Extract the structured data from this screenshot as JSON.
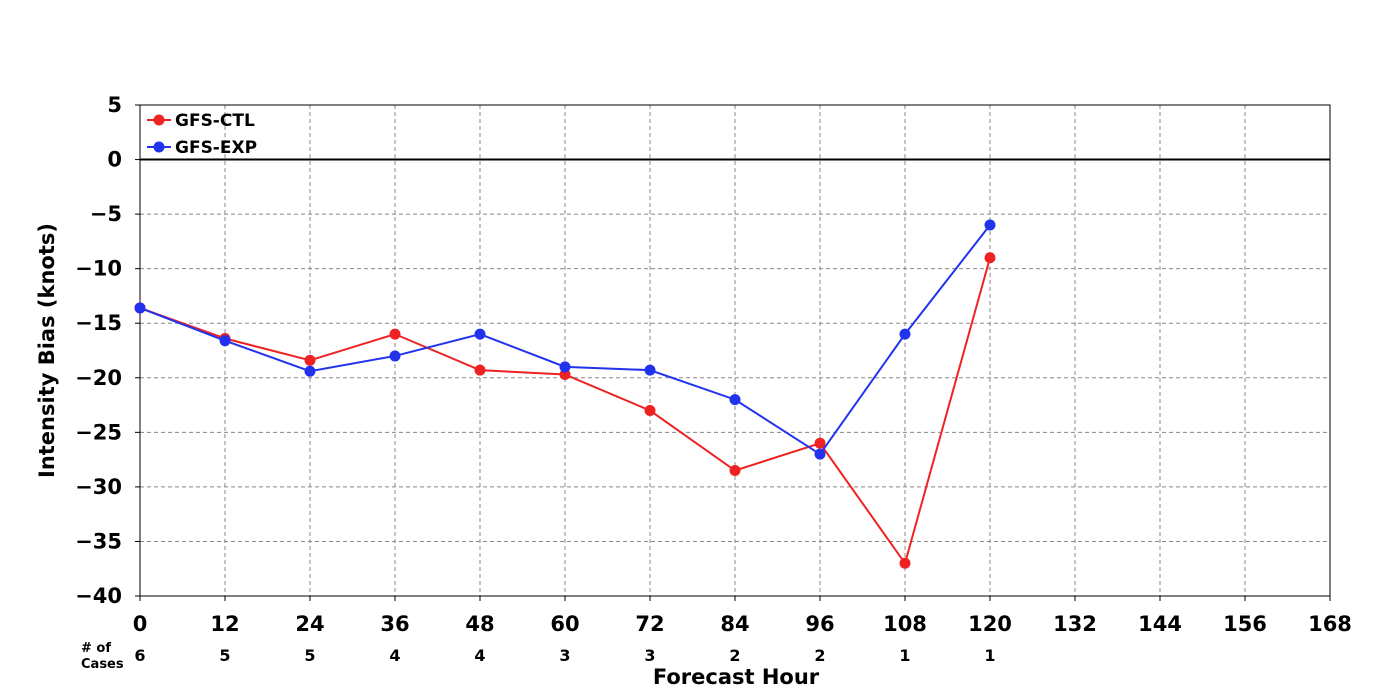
{
  "chart_data": {
    "type": "line",
    "title": "",
    "xlabel": "Forecast Hour",
    "ylabel": "Intensity Bias (knots)",
    "xlim": [
      0,
      168
    ],
    "ylim": [
      -40,
      5
    ],
    "x_ticks": [
      0,
      12,
      24,
      36,
      48,
      60,
      72,
      84,
      96,
      108,
      120,
      132,
      144,
      156,
      168
    ],
    "y_ticks": [
      5,
      0,
      -5,
      -10,
      -15,
      -20,
      -25,
      -30,
      -35,
      -40
    ],
    "y_tick_labels": [
      "5",
      "0",
      "−5",
      "−10",
      "−15",
      "−20",
      "−25",
      "−30",
      "−35",
      "−40"
    ],
    "grid": true,
    "zero_line": true,
    "legend_position": "top-left",
    "x": [
      0,
      12,
      24,
      36,
      48,
      60,
      72,
      84,
      96,
      108,
      120
    ],
    "series": [
      {
        "name": "GFS-CTL",
        "color": "#ee2222",
        "values": [
          -13.6,
          -16.4,
          -18.4,
          -16.0,
          -19.3,
          -19.7,
          -23.0,
          -28.5,
          -26.0,
          -37.0,
          -9.0
        ]
      },
      {
        "name": "GFS-EXP",
        "color": "#2233ee",
        "values": [
          -13.6,
          -16.6,
          -19.4,
          -18.0,
          -16.0,
          -19.0,
          -19.3,
          -22.0,
          -27.0,
          -16.0,
          -6.0
        ]
      }
    ],
    "cases_header_line1": "# of",
    "cases_header_line2": "Cases",
    "cases_x": [
      0,
      12,
      24,
      36,
      48,
      60,
      72,
      84,
      96,
      108,
      120
    ],
    "cases_counts": [
      "6",
      "5",
      "5",
      "4",
      "4",
      "3",
      "3",
      "2",
      "2",
      "1",
      "1"
    ]
  }
}
